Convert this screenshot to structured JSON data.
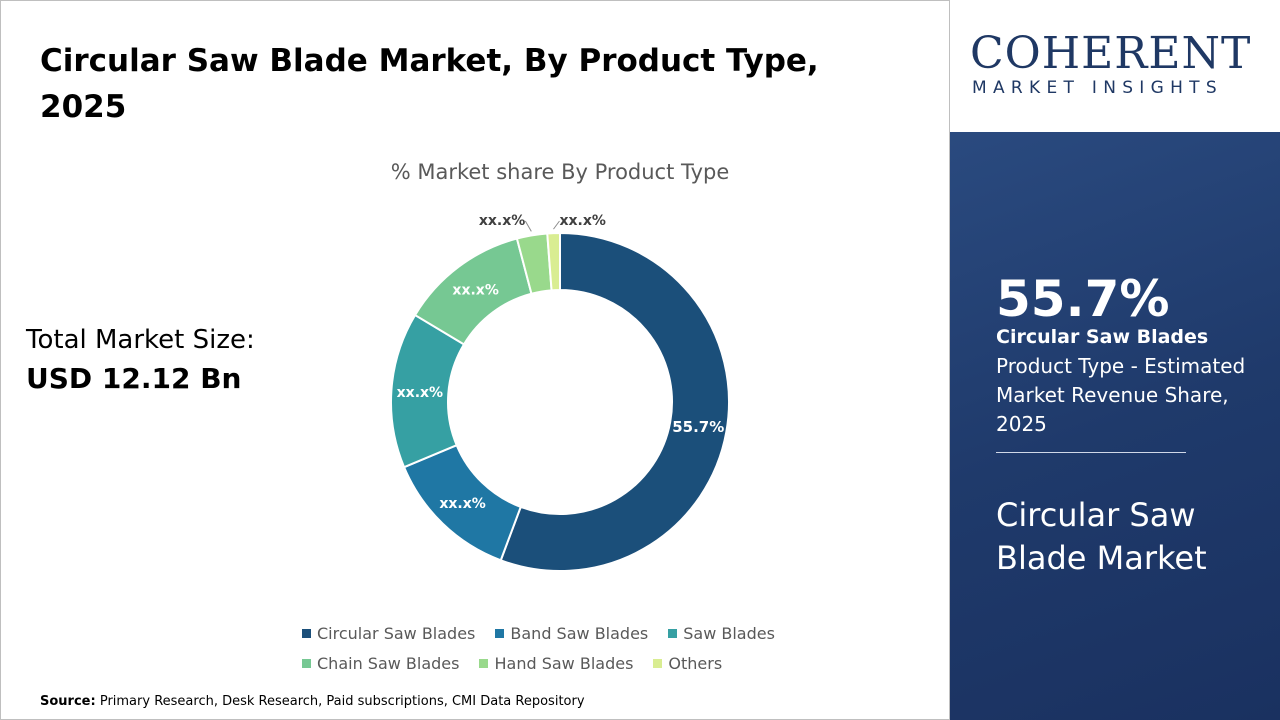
{
  "title": "Circular Saw Blade Market, By Product Type, 2025",
  "total_market": {
    "label": "Total Market Size:",
    "value": "USD 12.12 Bn"
  },
  "source": {
    "label": "Source:",
    "text": "Primary Research, Desk Research, Paid subscriptions, CMI Data Repository"
  },
  "logo": {
    "main": "COHERENT",
    "sub": "MARKET INSIGHTS"
  },
  "panel": {
    "percent": "55.7%",
    "segment": "Circular Saw Blades",
    "description": "Product Type - Estimated Market Revenue Share, 2025",
    "market": "Circular Saw Blade Market"
  },
  "chart_data": {
    "type": "pie",
    "subtype": "donut",
    "title": "% Market share By Product Type",
    "categories": [
      "Circular Saw Blades",
      "Band Saw Blades",
      "Saw Blades",
      "Chain Saw Blades",
      "Hand Saw Blades",
      "Others"
    ],
    "values": [
      55.7,
      13.0,
      14.9,
      12.3,
      2.9,
      1.2
    ],
    "data_labels": [
      "55.7%",
      "xx.x%",
      "xx.x%",
      "xx.x%",
      "xx.x%",
      "xx.x%"
    ],
    "colors": [
      "#1b4f7a",
      "#1f77a4",
      "#36a0a3",
      "#76c893",
      "#99d98c",
      "#d9ed92"
    ],
    "legend_position": "bottom"
  }
}
